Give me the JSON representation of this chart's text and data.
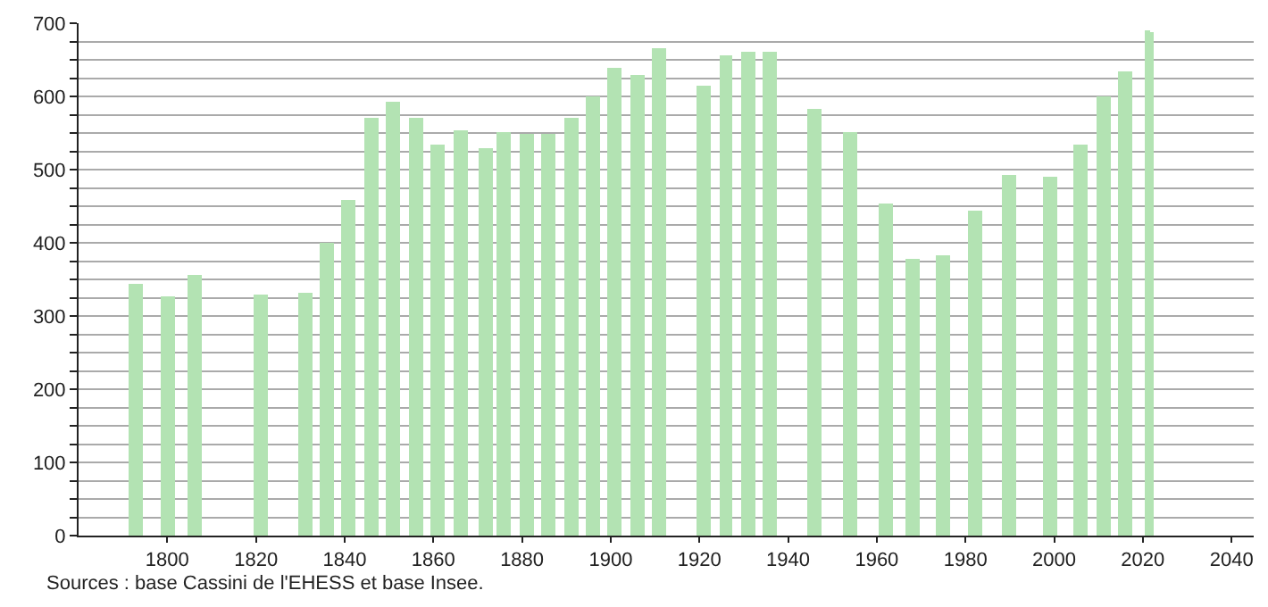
{
  "chart_data": {
    "type": "bar",
    "color": "#b3e3b3",
    "x": [
      1793,
      1800,
      1806,
      1821,
      1831,
      1836,
      1841,
      1846,
      1851,
      1856,
      1861,
      1866,
      1872,
      1876,
      1881,
      1886,
      1891,
      1896,
      1901,
      1906,
      1911,
      1921,
      1926,
      1931,
      1936,
      1946,
      1954,
      1962,
      1968,
      1975,
      1982,
      1990,
      1999,
      2006,
      2011,
      2016,
      2021,
      2022
    ],
    "values": [
      343,
      326,
      355,
      329,
      331,
      399,
      459,
      571,
      592,
      571,
      534,
      553,
      529,
      551,
      548,
      549,
      571,
      599,
      640,
      630,
      665,
      614,
      657,
      660,
      662,
      582,
      551,
      454,
      379,
      383,
      445,
      492,
      490,
      533,
      599,
      635,
      690,
      688
    ],
    "xlim": [
      1780,
      2045
    ],
    "xticks": [
      1800,
      1820,
      1840,
      1860,
      1880,
      1900,
      1920,
      1940,
      1960,
      1980,
      2000,
      2020,
      2040
    ],
    "ylim": [
      0,
      700
    ],
    "yticks": [
      0,
      {
        "value": 25,
        "label": null
      },
      {
        "value": 50,
        "label": null
      },
      {
        "value": 75,
        "label": null
      },
      100,
      {
        "value": 125,
        "label": null
      },
      {
        "value": 150,
        "label": null
      },
      {
        "value": 175,
        "label": null
      },
      200,
      {
        "value": 225,
        "label": null
      },
      {
        "value": 250,
        "label": null
      },
      {
        "value": 275,
        "label": null
      },
      300,
      {
        "value": 325,
        "label": null
      },
      {
        "value": 350,
        "label": null
      },
      {
        "value": 375,
        "label": null
      },
      400,
      {
        "value": 425,
        "label": null
      },
      {
        "value": 450,
        "label": null
      },
      {
        "value": 475,
        "label": null
      },
      500,
      {
        "value": 525,
        "label": null
      },
      {
        "value": 550,
        "label": null
      },
      {
        "value": 575,
        "label": null
      },
      600,
      {
        "value": 625,
        "label": null
      },
      {
        "value": 650,
        "label": null
      },
      {
        "value": 675,
        "label": null
      },
      700
    ],
    "grid": "y",
    "annotations": [
      "Sources : base Cassini de l'EHESS et base Insee."
    ]
  }
}
